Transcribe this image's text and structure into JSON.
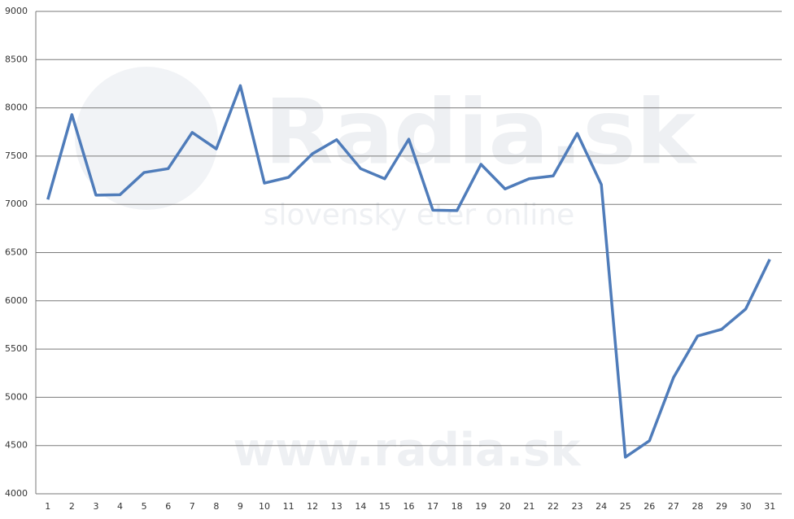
{
  "chart_data": {
    "type": "line",
    "categories": [
      "1",
      "2",
      "3",
      "4",
      "5",
      "6",
      "7",
      "8",
      "9",
      "10",
      "11",
      "12",
      "13",
      "14",
      "15",
      "16",
      "17",
      "18",
      "19",
      "20",
      "21",
      "22",
      "23",
      "24",
      "25",
      "26",
      "27",
      "28",
      "29",
      "30",
      "31"
    ],
    "series": [
      {
        "color": "#4f7cba",
        "values": [
          7050,
          7930,
          7095,
          7100,
          7330,
          7370,
          7745,
          7575,
          8230,
          7220,
          7280,
          7525,
          7670,
          7370,
          7265,
          7675,
          6940,
          6935,
          7415,
          7160,
          7265,
          7295,
          7735,
          7205,
          4380,
          4550,
          5205,
          5635,
          5705,
          5915,
          6430
        ]
      }
    ],
    "ylim": [
      4000,
      9000
    ],
    "yticks": [
      4000,
      4500,
      5000,
      5500,
      6000,
      6500,
      7000,
      7500,
      8000,
      8500,
      9000
    ],
    "grid": true,
    "watermarks": [
      "Radia.sk",
      "slovensky eter online",
      "www.radia.sk"
    ]
  }
}
